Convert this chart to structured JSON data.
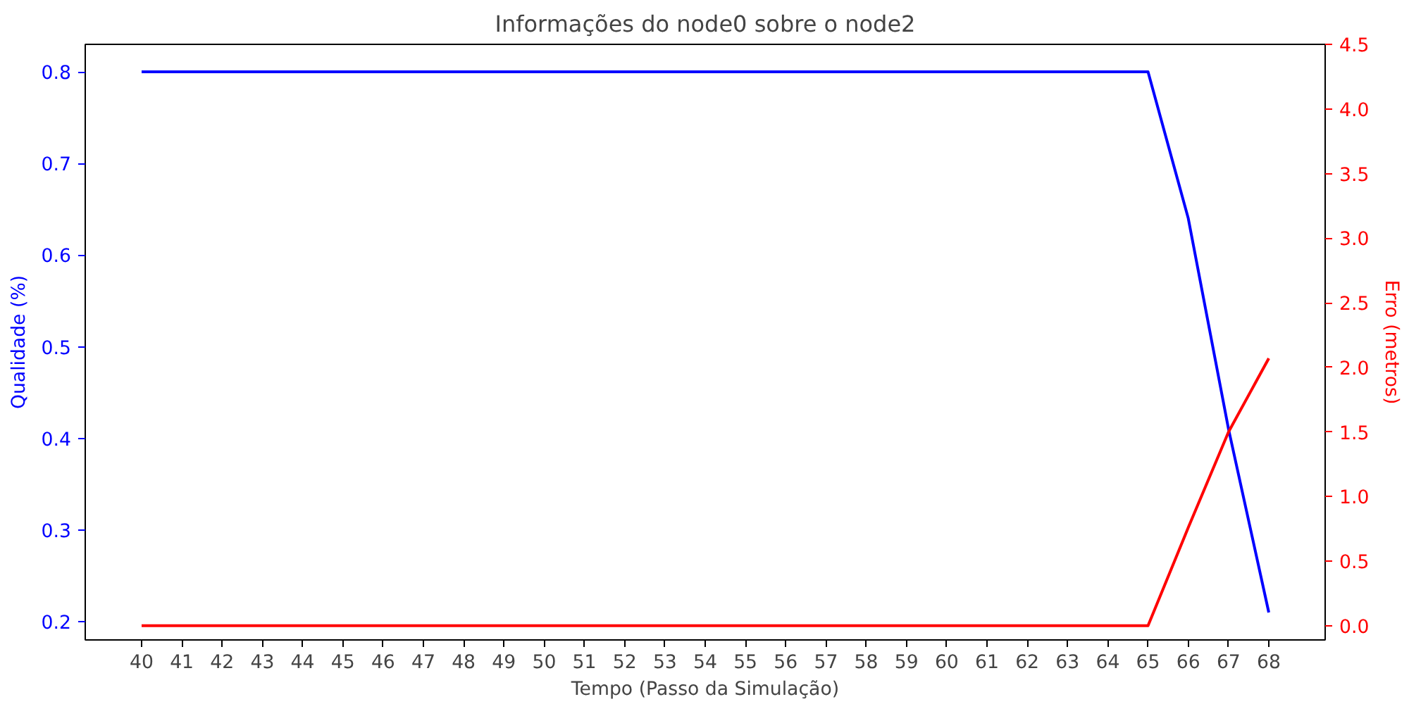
{
  "chart_data": {
    "type": "line",
    "title": "Informações do node0 sobre o node2",
    "xlabel": "Tempo (Passo da Simulação)",
    "ylabel": "Qualidade (%)",
    "y2label": "Erro (metros)",
    "x": [
      40,
      41,
      42,
      43,
      44,
      45,
      46,
      47,
      48,
      49,
      50,
      51,
      52,
      53,
      54,
      55,
      56,
      57,
      58,
      59,
      60,
      61,
      62,
      63,
      64,
      65,
      66,
      67,
      68
    ],
    "series": [
      {
        "color": "#0000ff",
        "values": [
          0.8,
          0.8,
          0.8,
          0.8,
          0.8,
          0.8,
          0.8,
          0.8,
          0.8,
          0.8,
          0.8,
          0.8,
          0.8,
          0.8,
          0.8,
          0.8,
          0.8,
          0.8,
          0.8,
          0.8,
          0.8,
          0.8,
          0.8,
          0.8,
          0.8,
          0.8,
          0.64,
          0.41,
          0.21
        ]
      },
      {
        "color": "#ff0000",
        "axis": "y2",
        "values": [
          0,
          0,
          0,
          0,
          0,
          0,
          0,
          0,
          0,
          0,
          0,
          0,
          0,
          0,
          0,
          0,
          0,
          0,
          0,
          0,
          0,
          0,
          0,
          0,
          0,
          0,
          0.76,
          1.5,
          2.07
        ]
      }
    ],
    "xlim": [
      38.6,
      69.4
    ],
    "xticks": [
      40,
      41,
      42,
      43,
      44,
      45,
      46,
      47,
      48,
      49,
      50,
      51,
      52,
      53,
      54,
      55,
      56,
      57,
      58,
      59,
      60,
      61,
      62,
      63,
      64,
      65,
      66,
      67,
      68
    ],
    "ylim": [
      0.18,
      0.83
    ],
    "yticks": [
      {
        "value": 0.2,
        "label": "0.2"
      },
      {
        "value": 0.3,
        "label": "0.3"
      },
      {
        "value": 0.4,
        "label": "0.4"
      },
      {
        "value": 0.5,
        "label": "0.5"
      },
      {
        "value": 0.6,
        "label": "0.6"
      },
      {
        "value": 0.7,
        "label": "0.7"
      },
      {
        "value": 0.8,
        "label": "0.8"
      }
    ],
    "y2lim": [
      -0.11,
      4.5
    ],
    "y2ticks": [
      {
        "value": 0,
        "label": "0.0"
      },
      {
        "value": 0.5,
        "label": "0.5"
      },
      {
        "value": 1,
        "label": "1.0"
      },
      {
        "value": 1.5,
        "label": "1.5"
      },
      {
        "value": 2,
        "label": "2.0"
      },
      {
        "value": 2.5,
        "label": "2.5"
      },
      {
        "value": 3,
        "label": "3.0"
      },
      {
        "value": 3.5,
        "label": "3.5"
      },
      {
        "value": 4,
        "label": "4.0"
      },
      {
        "value": 4.5,
        "label": "4.5"
      }
    ],
    "grid": false
  }
}
